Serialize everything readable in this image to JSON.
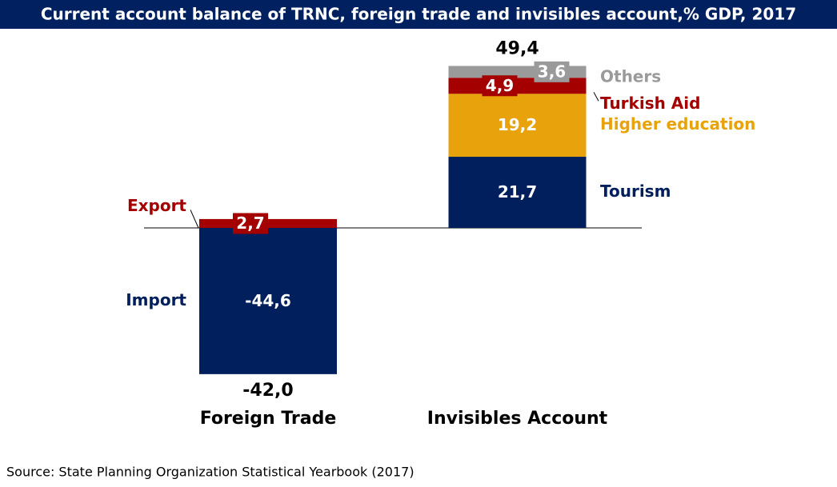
{
  "chart_data": {
    "type": "stacked_bar",
    "title": "Current account balance of TRNC, foreign trade and invisibles account,% GDP, 2017",
    "source": "Source: State Planning Organization Statistical Yearbook (2017)",
    "categories": [
      "Foreign Trade",
      "Invisibles Account"
    ],
    "series": [
      {
        "name": "Import",
        "color": "#001f5c",
        "values": [
          -44.6,
          null
        ],
        "value_labels": [
          "-44,6",
          null
        ]
      },
      {
        "name": "Export",
        "color": "#a50000",
        "values": [
          2.7,
          null
        ],
        "value_labels": [
          "2,7",
          null
        ]
      },
      {
        "name": "Tourism",
        "color": "#001f5c",
        "values": [
          null,
          21.7
        ],
        "value_labels": [
          null,
          "21,7"
        ]
      },
      {
        "name": "Higher education",
        "color": "#e8a30c",
        "values": [
          null,
          19.2
        ],
        "value_labels": [
          null,
          "19,2"
        ]
      },
      {
        "name": "Turkish Aid",
        "color": "#a50000",
        "values": [
          null,
          4.9
        ],
        "value_labels": [
          null,
          "4,9"
        ]
      },
      {
        "name": "Others",
        "color": "#9a9a9a",
        "values": [
          null,
          3.6
        ],
        "value_labels": [
          null,
          "3,6"
        ]
      }
    ],
    "totals": [
      -42.0,
      49.4
    ],
    "total_labels": [
      "-42,0",
      "49,4"
    ],
    "ylim": [
      -50,
      55
    ]
  }
}
